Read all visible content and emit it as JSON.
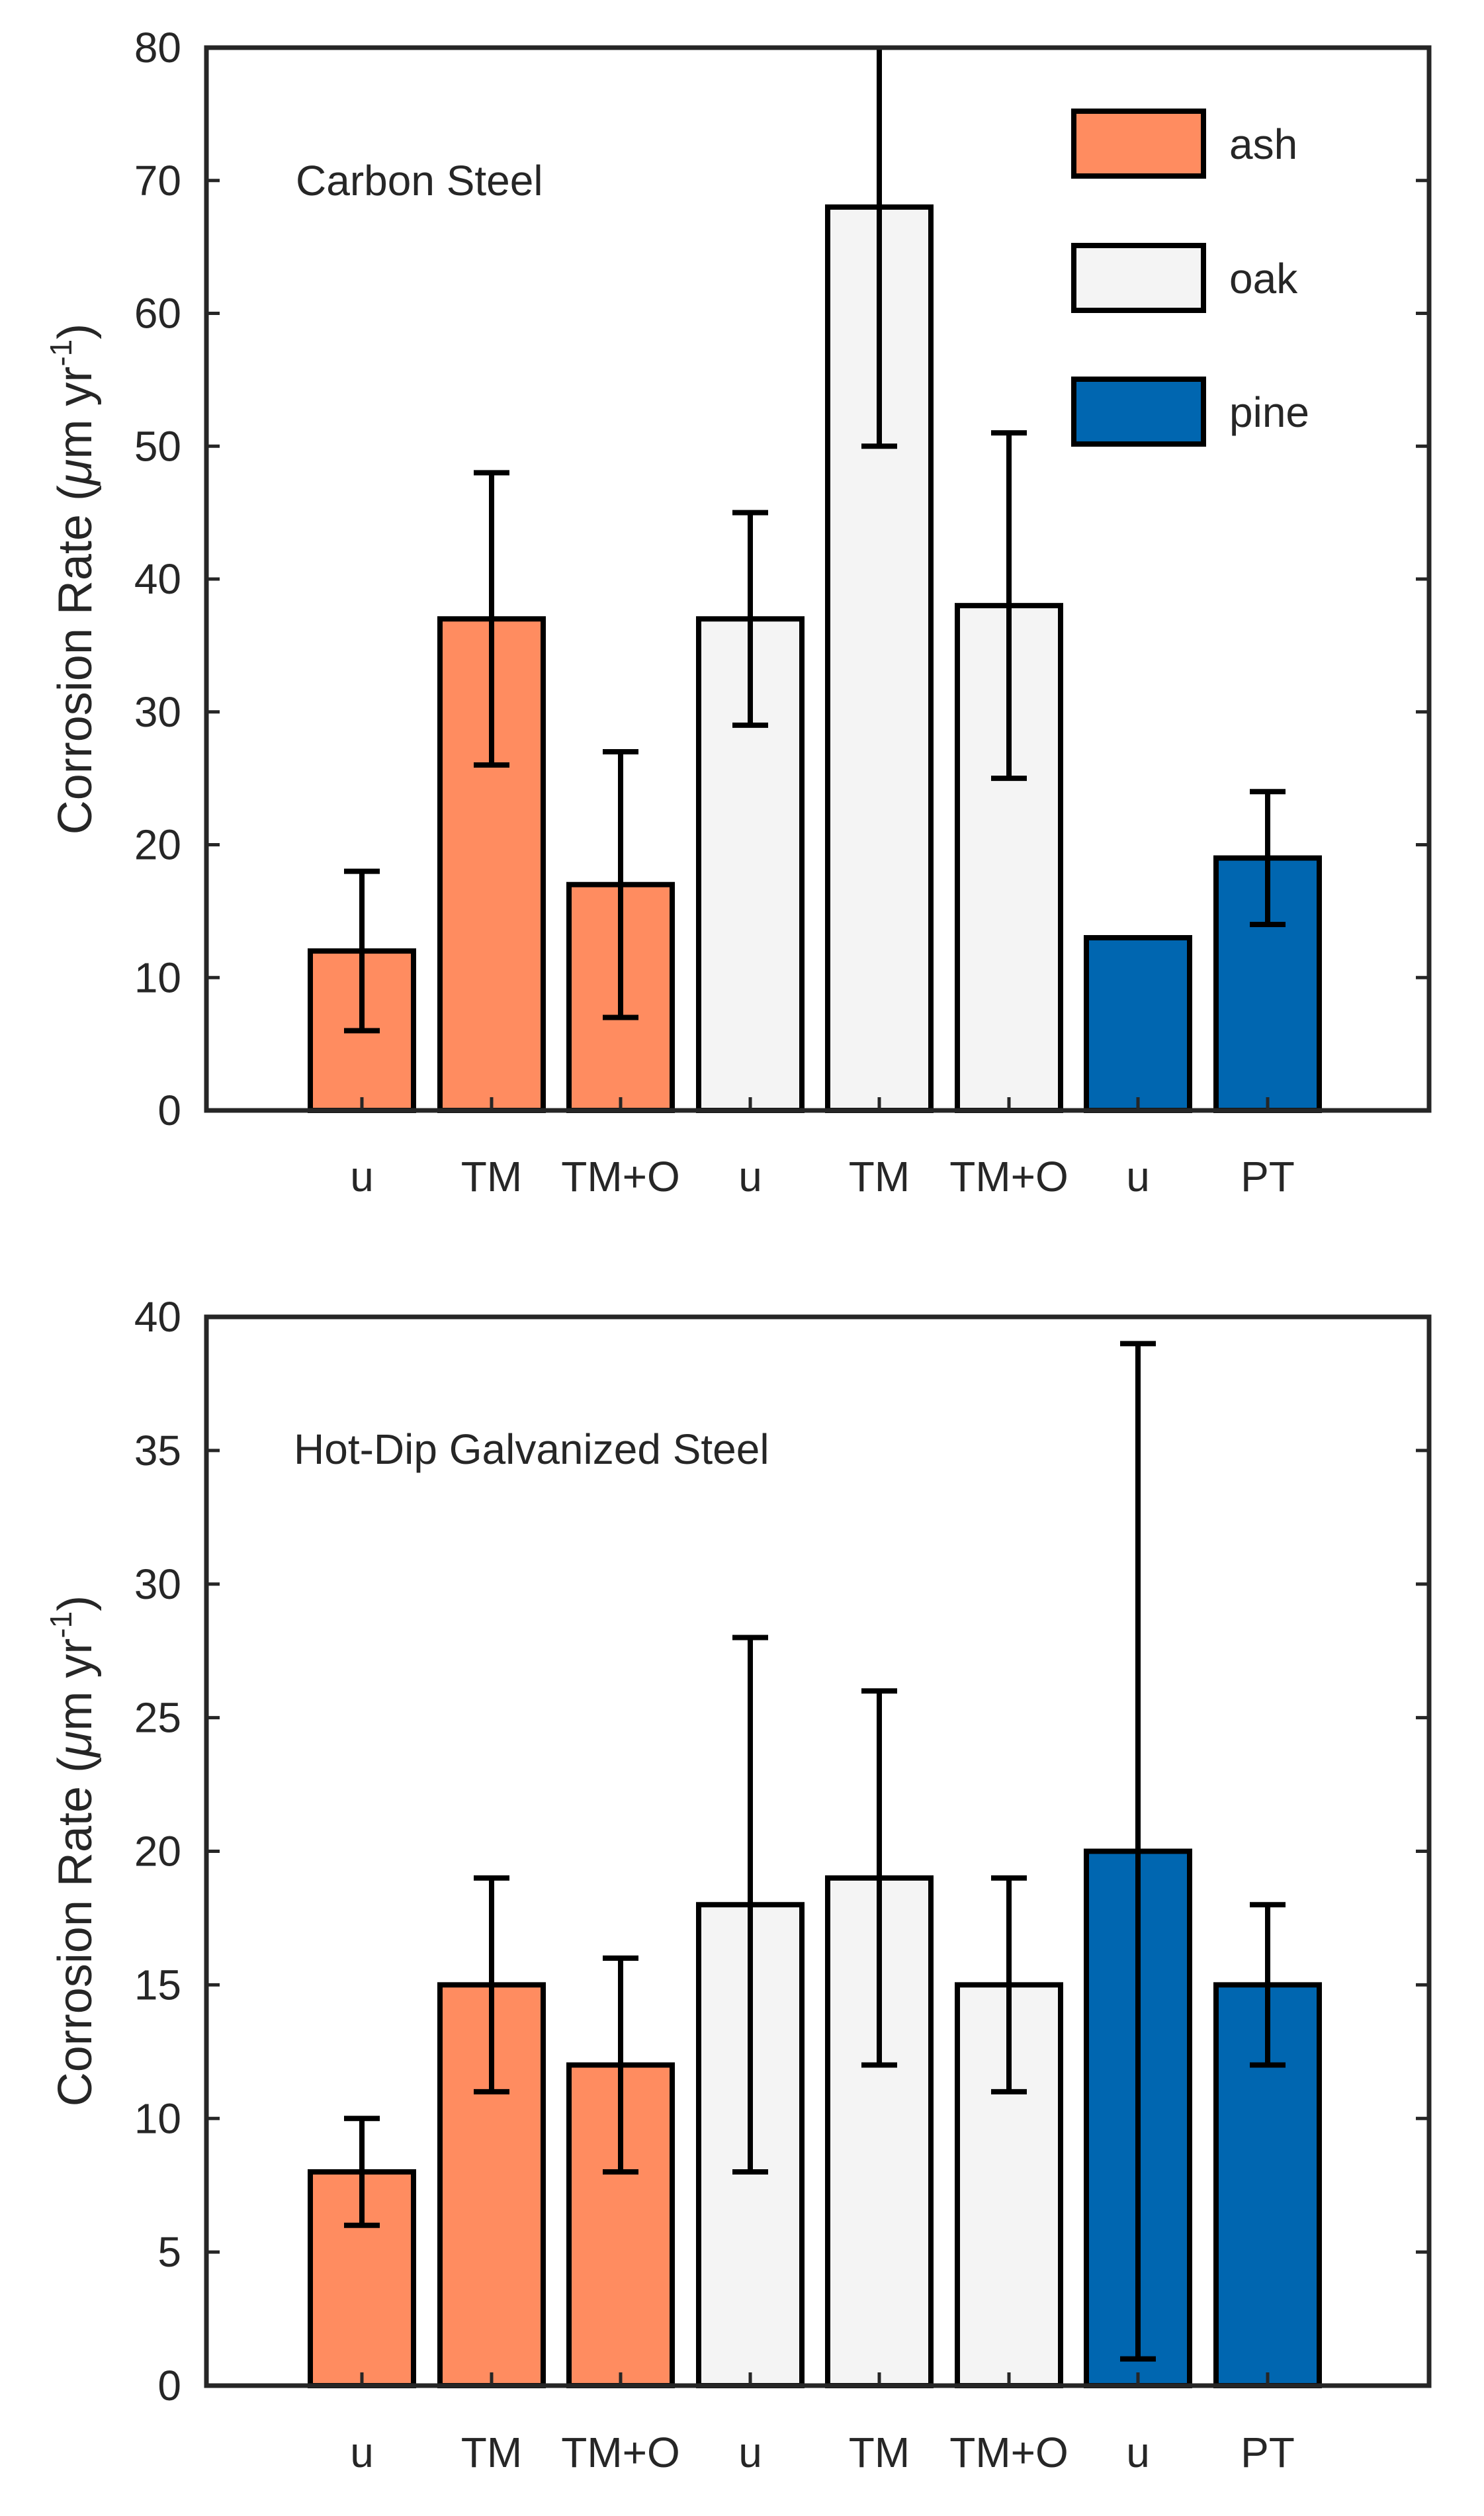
{
  "chart_data": [
    {
      "type": "bar",
      "title": "Carbon Steel",
      "xlabel": "",
      "ylabel": "Corrosion Rate (μm yr-1)",
      "ylabel_parts": {
        "main": "Corrosion Rate (",
        "mu": "μ",
        "unit": "m yr",
        "exp": "-1",
        "close": ")"
      },
      "ylim": [
        0,
        80
      ],
      "yticks": [
        0,
        10,
        20,
        30,
        40,
        50,
        60,
        70,
        80
      ],
      "categories": [
        "u",
        "TM",
        "TM+O",
        "u",
        "TM",
        "TM+O",
        "u",
        "PT"
      ],
      "groups": [
        "ash",
        "ash",
        "ash",
        "oak",
        "oak",
        "oak",
        "pine",
        "pine"
      ],
      "values": [
        12,
        37,
        17,
        37,
        68,
        38,
        13,
        19
      ],
      "error_low": [
        6,
        26,
        7,
        29,
        50,
        25,
        null,
        14
      ],
      "error_high": [
        18,
        48,
        27,
        45,
        80,
        51,
        null,
        24
      ],
      "legend": {
        "position": "top-right",
        "entries": [
          {
            "label": "ash",
            "color": "#ff8c60"
          },
          {
            "label": "oak",
            "color": "#f4f4f4"
          },
          {
            "label": "pine",
            "color": "#0066b0"
          }
        ]
      }
    },
    {
      "type": "bar",
      "title": "Hot-Dip Galvanized Steel",
      "xlabel": "",
      "ylabel": "Corrosion Rate (μm yr-1)",
      "ylabel_parts": {
        "main": "Corrosion Rate (",
        "mu": "μ",
        "unit": "m yr",
        "exp": "-1",
        "close": ")"
      },
      "ylim": [
        0,
        40
      ],
      "yticks": [
        0,
        5,
        10,
        15,
        20,
        25,
        30,
        35,
        40
      ],
      "categories": [
        "u",
        "TM",
        "TM+O",
        "u",
        "TM",
        "TM+O",
        "u",
        "PT"
      ],
      "groups": [
        "ash",
        "ash",
        "ash",
        "oak",
        "oak",
        "oak",
        "pine",
        "pine"
      ],
      "values": [
        8,
        15,
        12,
        18,
        19,
        15,
        20,
        15
      ],
      "error_low": [
        6,
        11,
        8,
        8,
        12,
        11,
        1,
        12
      ],
      "error_high": [
        10,
        19,
        16,
        28,
        26,
        19,
        39,
        18
      ]
    }
  ]
}
